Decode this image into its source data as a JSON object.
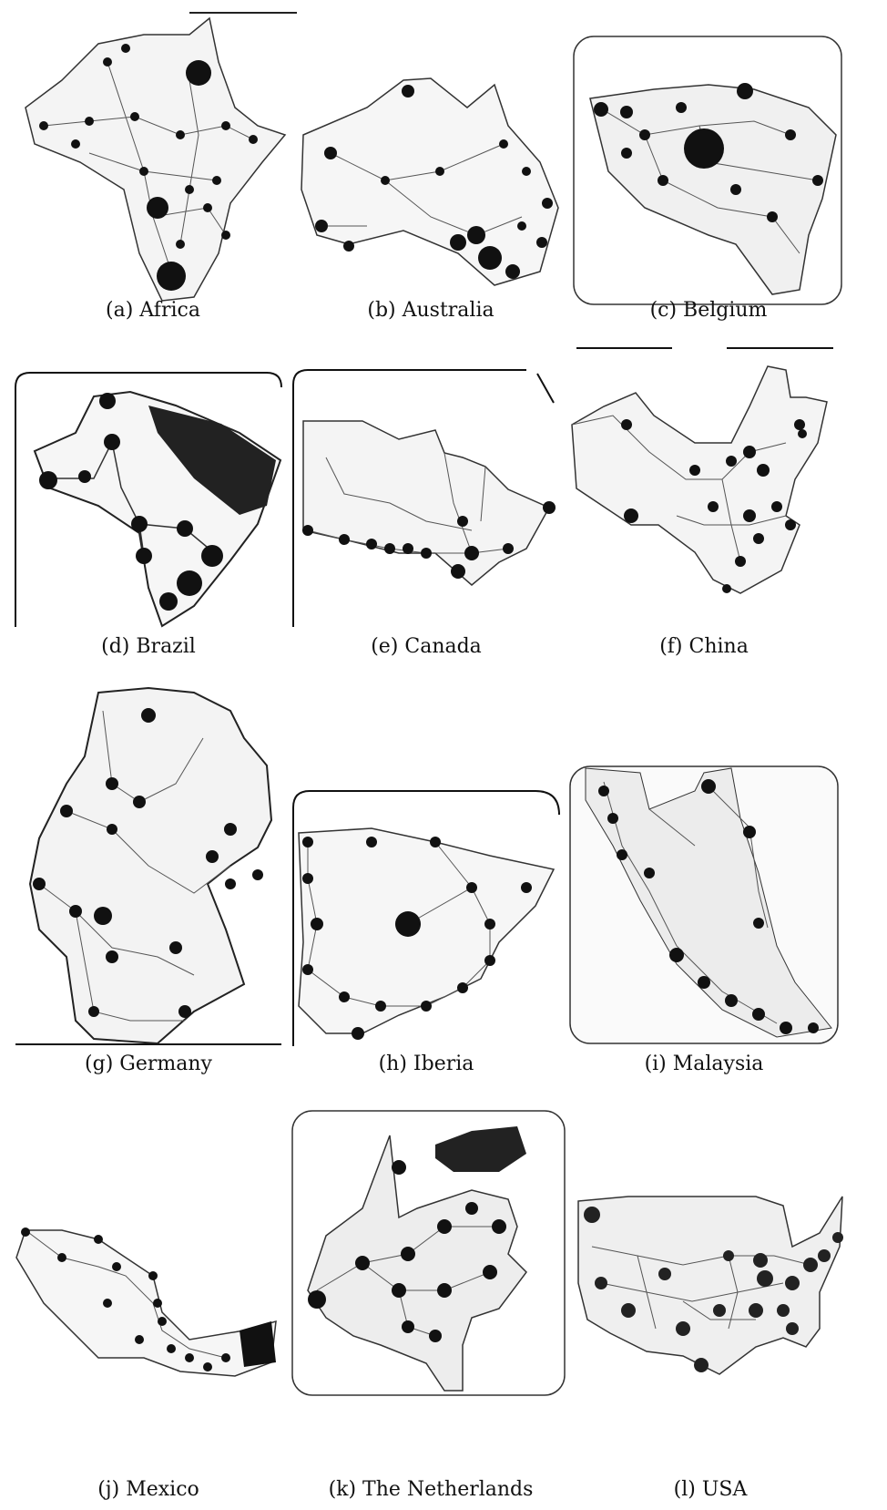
{
  "figure": {
    "panels": [
      {
        "id": "a",
        "caption": "(a) Africa"
      },
      {
        "id": "b",
        "caption": "(b) Australia"
      },
      {
        "id": "c",
        "caption": "(c) Belgium"
      },
      {
        "id": "d",
        "caption": "(d) Brazil"
      },
      {
        "id": "e",
        "caption": "(e) Canada"
      },
      {
        "id": "f",
        "caption": "(f) China"
      },
      {
        "id": "g",
        "caption": "(g) Germany"
      },
      {
        "id": "h",
        "caption": "(h) Iberia"
      },
      {
        "id": "i",
        "caption": "(i) Malaysia"
      },
      {
        "id": "j",
        "caption": "(j) Mexico"
      },
      {
        "id": "k",
        "caption": "(k) The Netherlands"
      },
      {
        "id": "l",
        "caption": "(l) USA"
      }
    ]
  }
}
